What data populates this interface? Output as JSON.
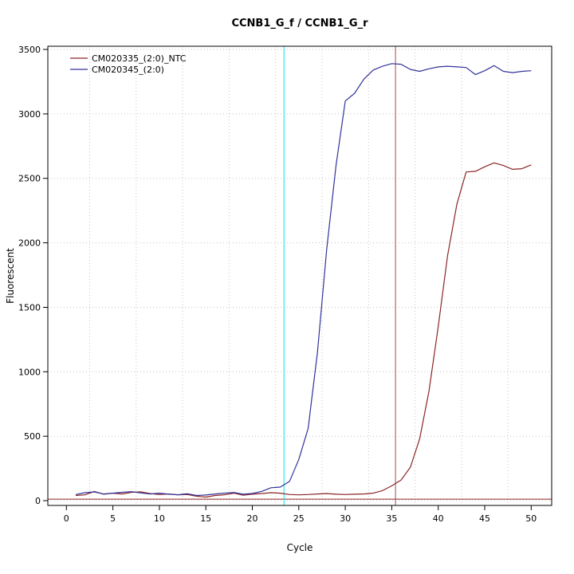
{
  "chart_data": {
    "type": "line",
    "title": "CCNB1_G_f / CCNB1_G_r",
    "xlabel": "Cycle",
    "ylabel": "Fluorescent",
    "xlim": [
      -2,
      52.2
    ],
    "ylim": [
      -37,
      3525
    ],
    "x_ticks": [
      0,
      5,
      10,
      15,
      20,
      25,
      30,
      35,
      40,
      45,
      50
    ],
    "y_ticks": [
      0,
      500,
      1000,
      1500,
      2000,
      2500,
      3000,
      3500
    ],
    "grid": {
      "vertical_x": [
        2.5,
        7.5,
        12.5,
        17.5,
        22.5,
        27.5,
        32.5,
        37.5,
        42.5,
        47.5
      ],
      "horizontal_y": [
        0,
        500,
        1000,
        1500,
        2000,
        2500,
        3000,
        3500
      ]
    },
    "x": [
      1,
      2,
      3,
      4,
      5,
      6,
      7,
      8,
      9,
      10,
      11,
      12,
      13,
      14,
      15,
      16,
      17,
      18,
      19,
      20,
      21,
      22,
      23,
      24,
      25,
      26,
      27,
      28,
      29,
      30,
      31,
      32,
      33,
      34,
      35,
      36,
      37,
      38,
      39,
      40,
      41,
      42,
      43,
      44,
      45,
      46,
      47,
      48,
      49,
      50
    ],
    "series": [
      {
        "name": "CM020335_(2:0)_NTC",
        "color": "#8B2525",
        "values": [
          40,
          45,
          72,
          50,
          58,
          52,
          65,
          68,
          55,
          48,
          52,
          45,
          48,
          35,
          28,
          40,
          45,
          58,
          42,
          50,
          55,
          62,
          58,
          48,
          45,
          48,
          52,
          55,
          50,
          48,
          50,
          52,
          58,
          78,
          115,
          160,
          260,
          480,
          850,
          1350,
          1900,
          2300,
          2550,
          2555,
          2590,
          2620,
          2600,
          2570,
          2575,
          2605
        ]
      },
      {
        "name": "CM020345_(2:0)",
        "color": "#32329B",
        "values": [
          48,
          62,
          68,
          52,
          58,
          65,
          70,
          60,
          52,
          58,
          50,
          46,
          54,
          40,
          44,
          52,
          58,
          64,
          50,
          56,
          72,
          100,
          105,
          150,
          320,
          560,
          1150,
          1950,
          2600,
          3100,
          3160,
          3270,
          3340,
          3370,
          3390,
          3385,
          3345,
          3330,
          3350,
          3365,
          3370,
          3365,
          3360,
          3305,
          3335,
          3375,
          3330,
          3320,
          3330,
          3335
        ]
      }
    ],
    "threshold_line": {
      "y": 12,
      "color": "#8B2525"
    },
    "ct_lines": [
      {
        "name": "ct-line-cm020345",
        "x": 23.4,
        "color": "#00E5EE"
      },
      {
        "name": "ct-line-cm020335",
        "x": 35.4,
        "color": "#A34A4A"
      }
    ],
    "legend": {
      "position": "top-left",
      "entries": [
        "CM020335_(2:0)_NTC",
        "CM020345_(2:0)"
      ]
    }
  }
}
